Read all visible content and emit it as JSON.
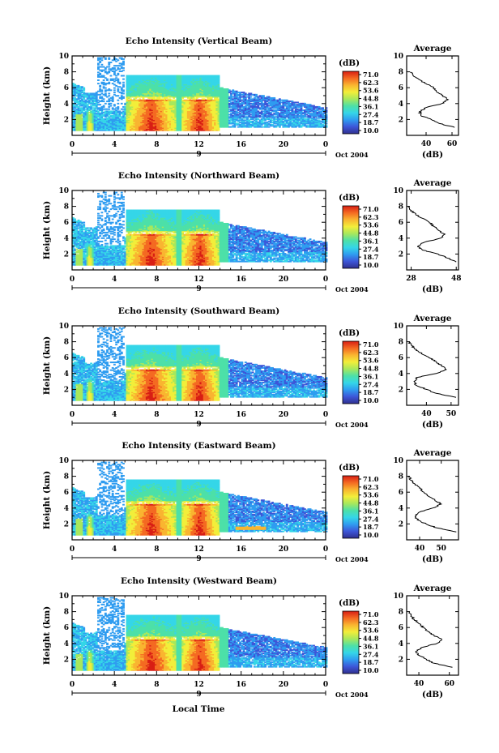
{
  "figure": {
    "xlabel": "Local Time",
    "date_label": "Oct 2004",
    "day_label": "9",
    "colorbar_unit": "(dB)",
    "colorbar_ticks": [
      "71.0",
      "62.3",
      "53.6",
      "44.8",
      "36.1",
      "27.4",
      "18.7",
      "10.0"
    ],
    "colormap": [
      "#30308f",
      "#3d56d8",
      "#2f9cf0",
      "#35d6e8",
      "#4de0a8",
      "#a8e85c",
      "#f2ee3a",
      "#f9b530",
      "#f46a22",
      "#d81e14"
    ]
  },
  "chart_data": [
    {
      "type": "heatmap",
      "title": "Echo Intensity (Vertical Beam)",
      "ylabel": "Height (km)",
      "xlim": [
        0,
        24
      ],
      "ylim": [
        0,
        10
      ],
      "xticks": [
        "0",
        "4",
        "8",
        "12",
        "16",
        "20",
        "0"
      ],
      "yticks": [
        "2",
        "4",
        "6",
        "8",
        "10"
      ],
      "zlim": [
        10.0,
        71.0
      ],
      "profile": {
        "title": "Average",
        "xlabel": "(dB)",
        "xlim": [
          25,
          65
        ],
        "xticks": [
          40,
          60
        ],
        "height": [
          1.0,
          1.5,
          2.0,
          2.5,
          3.0,
          3.5,
          4.0,
          4.5,
          5.0,
          5.5,
          6.0,
          6.5,
          7.0,
          7.5,
          8.0
        ],
        "values": [
          62,
          50,
          44,
          36,
          35,
          40,
          52,
          57,
          53,
          48,
          46,
          40,
          35,
          30,
          28
        ]
      }
    },
    {
      "type": "heatmap",
      "title": "Echo Intensity (Northward Beam)",
      "ylabel": "Height (km)",
      "xlim": [
        0,
        24
      ],
      "ylim": [
        0,
        10
      ],
      "xticks": [
        "0",
        "4",
        "8",
        "12",
        "16",
        "20",
        "0"
      ],
      "yticks": [
        "2",
        "4",
        "6",
        "8",
        "10"
      ],
      "zlim": [
        10.0,
        71.0
      ],
      "profile": {
        "title": "Average",
        "xlabel": "(dB)",
        "xlim": [
          26,
          49
        ],
        "xticks": [
          28,
          48
        ],
        "height": [
          1.0,
          1.5,
          2.0,
          2.5,
          3.0,
          3.5,
          4.0,
          4.5,
          5.0,
          5.5,
          6.0,
          6.5,
          7.0,
          7.5,
          8.0
        ],
        "values": [
          48,
          44,
          40,
          33,
          31,
          34,
          41,
          43,
          40,
          38,
          36,
          33,
          30,
          28,
          27
        ]
      }
    },
    {
      "type": "heatmap",
      "title": "Echo Intensity (Southward Beam)",
      "ylabel": "Height (km)",
      "xlim": [
        0,
        24
      ],
      "ylim": [
        0,
        10
      ],
      "xticks": [
        "0",
        "4",
        "8",
        "12",
        "16",
        "20",
        "0"
      ],
      "yticks": [
        "2",
        "4",
        "6",
        "8",
        "10"
      ],
      "zlim": [
        10.0,
        71.0
      ],
      "profile": {
        "title": "Average",
        "xlabel": "(dB)",
        "xlim": [
          32,
          53
        ],
        "xticks": [
          40,
          50
        ],
        "height": [
          1.0,
          1.5,
          2.0,
          2.5,
          3.0,
          3.5,
          4.0,
          4.5,
          5.0,
          5.5,
          6.0,
          6.5,
          7.0,
          7.5,
          8.0
        ],
        "values": [
          52,
          44,
          40,
          36,
          35,
          36,
          44,
          48,
          46,
          44,
          41,
          38,
          36,
          34,
          33
        ]
      }
    },
    {
      "type": "heatmap",
      "title": "Echo Intensity (Eastward Beam)",
      "ylabel": "Height (km)",
      "xlim": [
        0,
        24
      ],
      "ylim": [
        0,
        10
      ],
      "xticks": [
        "0",
        "4",
        "8",
        "12",
        "16",
        "20",
        "0"
      ],
      "yticks": [
        "2",
        "4",
        "6",
        "8",
        "10"
      ],
      "zlim": [
        10.0,
        71.0
      ],
      "profile": {
        "title": "Average",
        "xlabel": "(dB)",
        "xlim": [
          34,
          58
        ],
        "xticks": [
          40,
          50
        ],
        "height": [
          1.0,
          1.5,
          2.0,
          2.5,
          3.0,
          3.5,
          4.0,
          4.5,
          5.0,
          5.5,
          6.0,
          6.5,
          7.0,
          7.5,
          8.0
        ],
        "values": [
          57,
          48,
          43,
          39,
          38,
          40,
          46,
          50,
          47,
          44,
          42,
          40,
          38,
          36,
          35
        ]
      }
    },
    {
      "type": "heatmap",
      "title": "Echo Intensity (Westward Beam)",
      "ylabel": "Height (km)",
      "xlim": [
        0,
        24
      ],
      "ylim": [
        0,
        10
      ],
      "xticks": [
        "0",
        "4",
        "8",
        "12",
        "16",
        "20",
        "0"
      ],
      "yticks": [
        "2",
        "4",
        "6",
        "8",
        "10"
      ],
      "zlim": [
        10.0,
        71.0
      ],
      "profile": {
        "title": "Average",
        "xlabel": "(dB)",
        "xlim": [
          32,
          66
        ],
        "xticks": [
          40,
          60
        ],
        "height": [
          1.0,
          1.5,
          2.0,
          2.5,
          3.0,
          3.5,
          4.0,
          4.5,
          5.0,
          5.5,
          6.0,
          6.5,
          7.0,
          7.5,
          8.0
        ],
        "values": [
          62,
          50,
          45,
          40,
          38,
          42,
          52,
          55,
          50,
          46,
          43,
          40,
          37,
          35,
          34
        ]
      }
    }
  ]
}
